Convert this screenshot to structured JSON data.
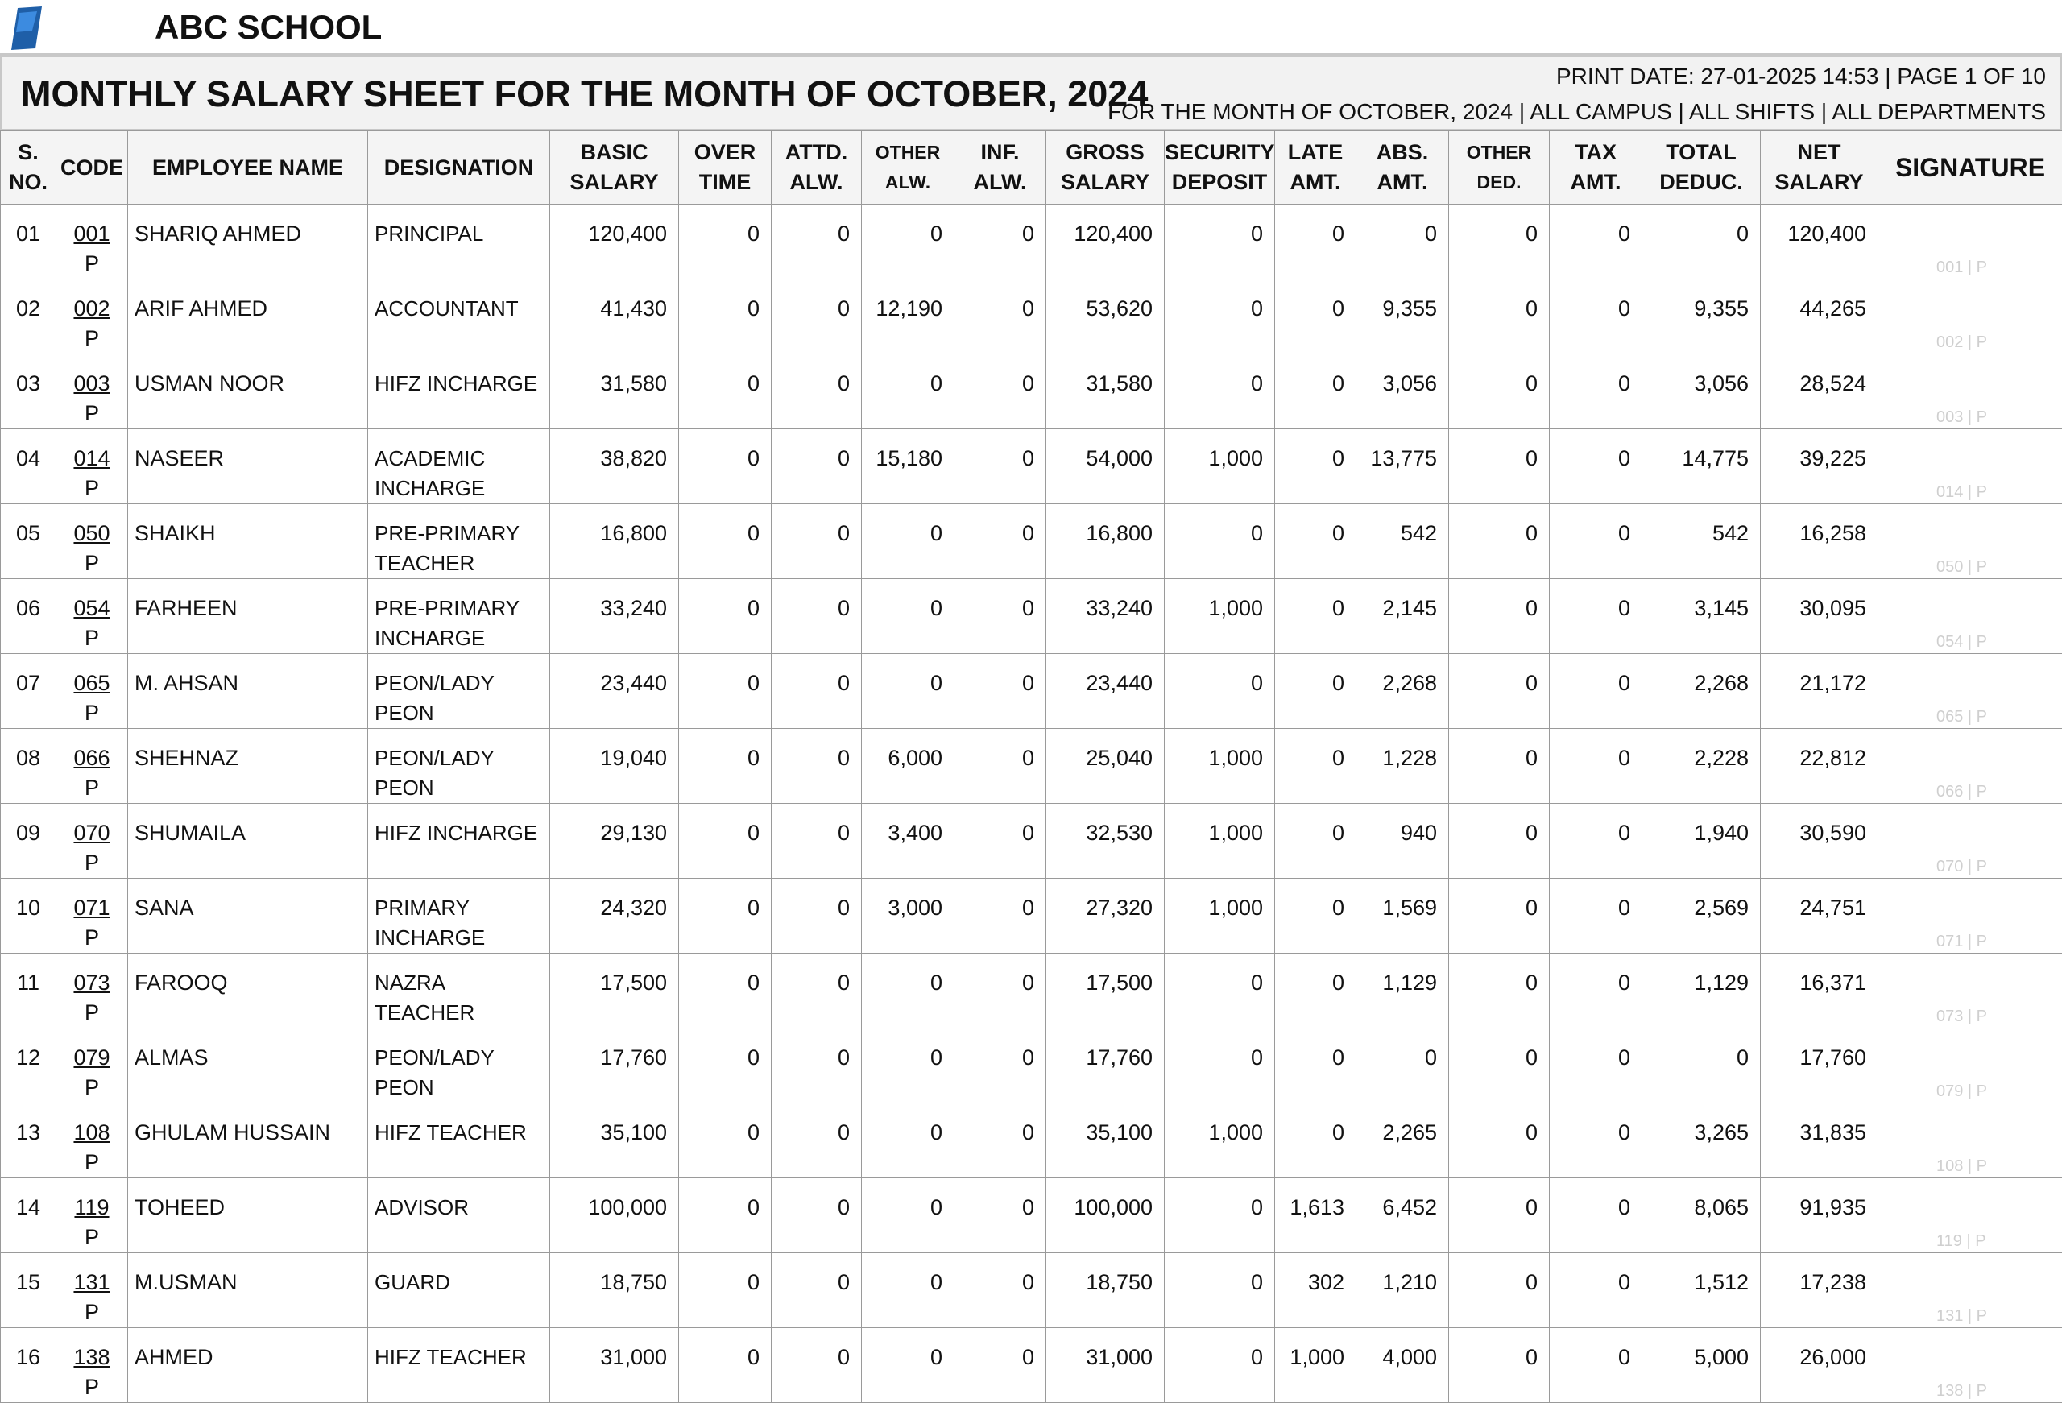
{
  "header": {
    "school": "ABC SCHOOL",
    "title": "MONTHLY SALARY SHEET FOR THE MONTH OF OCTOBER, 2024",
    "print_info": "PRINT DATE: 27-01-2025 14:53 | PAGE 1 OF 10",
    "filters": "FOR THE MONTH OF OCTOBER, 2024 | ALL CAMPUS | ALL SHIFTS | ALL DEPARTMENTS"
  },
  "table": {
    "columns": [
      [
        "S.",
        "NO."
      ],
      [
        "CODE"
      ],
      [
        "EMPLOYEE NAME"
      ],
      [
        "DESIGNATION"
      ],
      [
        "BASIC",
        "SALARY"
      ],
      [
        "OVER",
        "TIME"
      ],
      [
        "ATTD.",
        "ALW."
      ],
      [
        "OTHER",
        "ALW."
      ],
      [
        "INF.",
        "ALW."
      ],
      [
        "GROSS",
        "SALARY"
      ],
      [
        "SECURITY",
        "DEPOSIT"
      ],
      [
        "LATE",
        "AMT."
      ],
      [
        "ABS.",
        "AMT."
      ],
      [
        "OTHER",
        "DED."
      ],
      [
        "TAX",
        "AMT."
      ],
      [
        "TOTAL",
        "DEDUC."
      ],
      [
        "NET",
        "SALARY"
      ],
      [
        "SIGNATURE"
      ]
    ],
    "rows": [
      {
        "sno": "01",
        "code": "001",
        "status": "P",
        "name": "SHARIQ AHMED",
        "designation": "PRINCIPAL",
        "values": [
          "120,400",
          "0",
          "0",
          "0",
          "0",
          "120,400",
          "0",
          "0",
          "0",
          "0",
          "0",
          "0",
          "120,400"
        ],
        "signature": "001 | P"
      },
      {
        "sno": "02",
        "code": "002",
        "status": "P",
        "name": "ARIF AHMED",
        "designation": "ACCOUNTANT",
        "values": [
          "41,430",
          "0",
          "0",
          "12,190",
          "0",
          "53,620",
          "0",
          "0",
          "9,355",
          "0",
          "0",
          "9,355",
          "44,265"
        ],
        "signature": "002 | P"
      },
      {
        "sno": "03",
        "code": "003",
        "status": "P",
        "name": "USMAN NOOR",
        "designation": "HIFZ INCHARGE",
        "values": [
          "31,580",
          "0",
          "0",
          "0",
          "0",
          "31,580",
          "0",
          "0",
          "3,056",
          "0",
          "0",
          "3,056",
          "28,524"
        ],
        "signature": "003 | P"
      },
      {
        "sno": "04",
        "code": "014",
        "status": "P",
        "name": "NASEER",
        "designation": "ACADEMIC INCHARGE",
        "values": [
          "38,820",
          "0",
          "0",
          "15,180",
          "0",
          "54,000",
          "1,000",
          "0",
          "13,775",
          "0",
          "0",
          "14,775",
          "39,225"
        ],
        "signature": "014 | P"
      },
      {
        "sno": "05",
        "code": "050",
        "status": "P",
        "name": "SHAIKH",
        "designation": "PRE-PRIMARY TEACHER",
        "values": [
          "16,800",
          "0",
          "0",
          "0",
          "0",
          "16,800",
          "0",
          "0",
          "542",
          "0",
          "0",
          "542",
          "16,258"
        ],
        "signature": "050 | P"
      },
      {
        "sno": "06",
        "code": "054",
        "status": "P",
        "name": "FARHEEN",
        "designation": "PRE-PRIMARY INCHARGE",
        "values": [
          "33,240",
          "0",
          "0",
          "0",
          "0",
          "33,240",
          "1,000",
          "0",
          "2,145",
          "0",
          "0",
          "3,145",
          "30,095"
        ],
        "signature": "054 | P"
      },
      {
        "sno": "07",
        "code": "065",
        "status": "P",
        "name": "M. AHSAN",
        "designation": "PEON/LADY PEON",
        "values": [
          "23,440",
          "0",
          "0",
          "0",
          "0",
          "23,440",
          "0",
          "0",
          "2,268",
          "0",
          "0",
          "2,268",
          "21,172"
        ],
        "signature": "065 | P"
      },
      {
        "sno": "08",
        "code": "066",
        "status": "P",
        "name": "SHEHNAZ",
        "designation": "PEON/LADY PEON",
        "values": [
          "19,040",
          "0",
          "0",
          "6,000",
          "0",
          "25,040",
          "1,000",
          "0",
          "1,228",
          "0",
          "0",
          "2,228",
          "22,812"
        ],
        "signature": "066 | P"
      },
      {
        "sno": "09",
        "code": "070",
        "status": "P",
        "name": "SHUMAILA",
        "designation": "HIFZ INCHARGE",
        "values": [
          "29,130",
          "0",
          "0",
          "3,400",
          "0",
          "32,530",
          "1,000",
          "0",
          "940",
          "0",
          "0",
          "1,940",
          "30,590"
        ],
        "signature": "070 | P"
      },
      {
        "sno": "10",
        "code": "071",
        "status": "P",
        "name": "SANA",
        "designation": "PRIMARY INCHARGE",
        "values": [
          "24,320",
          "0",
          "0",
          "3,000",
          "0",
          "27,320",
          "1,000",
          "0",
          "1,569",
          "0",
          "0",
          "2,569",
          "24,751"
        ],
        "signature": "071 | P"
      },
      {
        "sno": "11",
        "code": "073",
        "status": "P",
        "name": "FAROOQ",
        "designation": "NAZRA TEACHER",
        "values": [
          "17,500",
          "0",
          "0",
          "0",
          "0",
          "17,500",
          "0",
          "0",
          "1,129",
          "0",
          "0",
          "1,129",
          "16,371"
        ],
        "signature": "073 | P"
      },
      {
        "sno": "12",
        "code": "079",
        "status": "P",
        "name": "ALMAS",
        "designation": "PEON/LADY PEON",
        "values": [
          "17,760",
          "0",
          "0",
          "0",
          "0",
          "17,760",
          "0",
          "0",
          "0",
          "0",
          "0",
          "0",
          "17,760"
        ],
        "signature": "079 | P"
      },
      {
        "sno": "13",
        "code": "108",
        "status": "P",
        "name": "GHULAM HUSSAIN",
        "designation": "HIFZ TEACHER",
        "values": [
          "35,100",
          "0",
          "0",
          "0",
          "0",
          "35,100",
          "1,000",
          "0",
          "2,265",
          "0",
          "0",
          "3,265",
          "31,835"
        ],
        "signature": "108 | P"
      },
      {
        "sno": "14",
        "code": "119",
        "status": "P",
        "name": "TOHEED",
        "designation": "ADVISOR",
        "values": [
          "100,000",
          "0",
          "0",
          "0",
          "0",
          "100,000",
          "0",
          "1,613",
          "6,452",
          "0",
          "0",
          "8,065",
          "91,935"
        ],
        "signature": "119 | P"
      },
      {
        "sno": "15",
        "code": "131",
        "status": "P",
        "name": "M.USMAN",
        "designation": "GUARD",
        "values": [
          "18,750",
          "0",
          "0",
          "0",
          "0",
          "18,750",
          "0",
          "302",
          "1,210",
          "0",
          "0",
          "1,512",
          "17,238"
        ],
        "signature": "131 | P"
      },
      {
        "sno": "16",
        "code": "138",
        "status": "P",
        "name": "AHMED",
        "designation": "HIFZ TEACHER",
        "values": [
          "31,000",
          "0",
          "0",
          "0",
          "0",
          "31,000",
          "0",
          "1,000",
          "4,000",
          "0",
          "0",
          "5,000",
          "26,000"
        ],
        "signature": "138 | P"
      }
    ]
  }
}
